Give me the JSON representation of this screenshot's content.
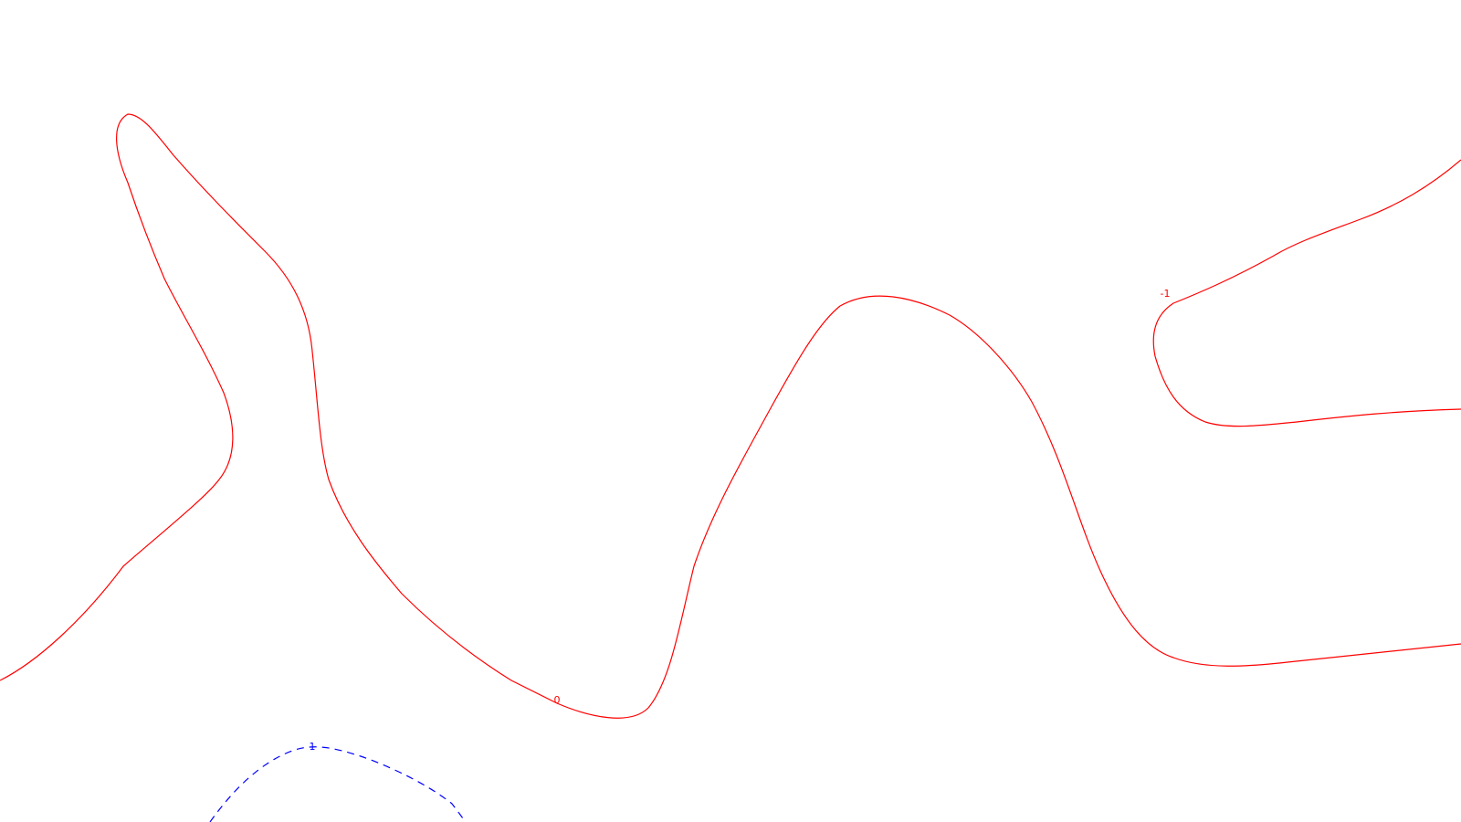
{
  "contour_map": {
    "levels": [
      {
        "id": "level-0",
        "label": "0",
        "color": "#ff0000",
        "style": "solid"
      },
      {
        "id": "level-minus-1",
        "label": "-1",
        "color": "#ff0000",
        "style": "solid"
      },
      {
        "id": "level-1",
        "label": "1",
        "color": "#0000ff",
        "style": "dashed"
      }
    ]
  }
}
